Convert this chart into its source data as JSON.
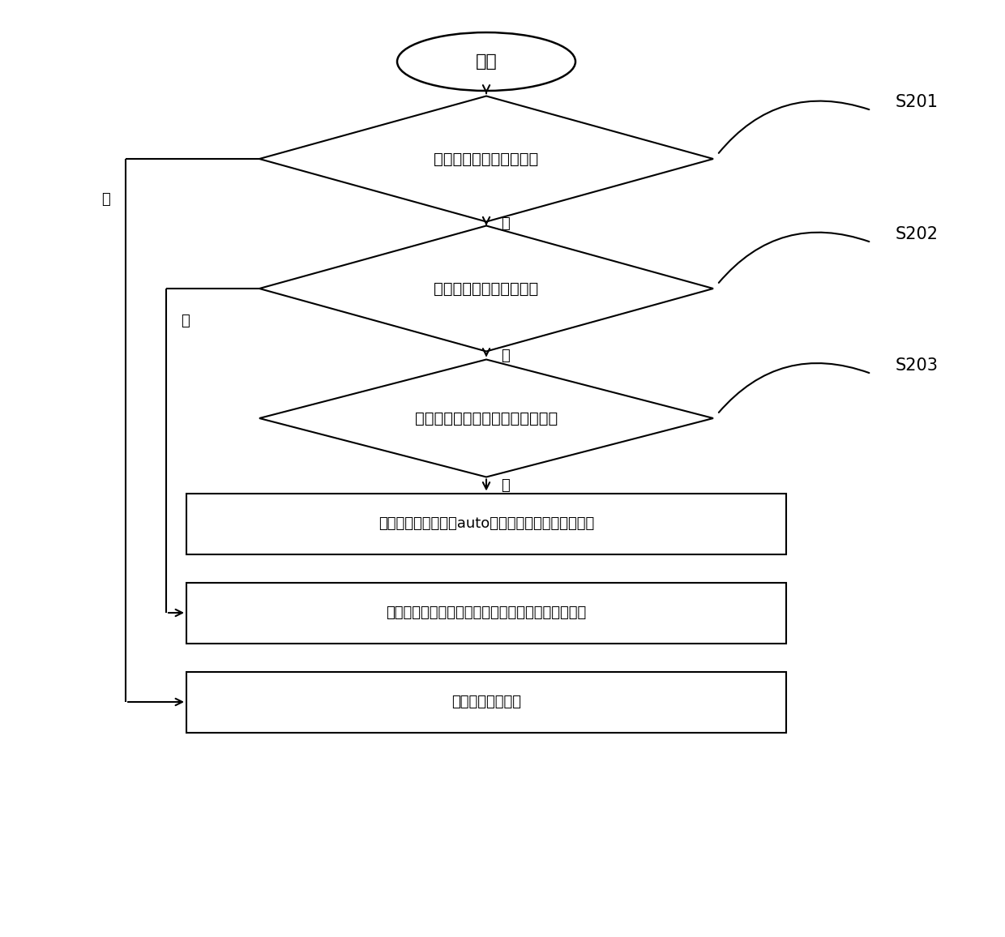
{
  "bg_color": "#ffffff",
  "line_color": "#000000",
  "text_color": "#000000",
  "font_size_start": 16,
  "font_size_diamond": 14,
  "font_size_box": 13,
  "font_size_step": 15,
  "font_size_label": 13,
  "start_label": "开始",
  "diamond1_label": "是否存在固定宽度值的列",
  "diamond2_label": "是否存在最小宽度值的列",
  "diamond3_label": "是否既没有宽度值也没有最小宽度",
  "box1_label": "将该列的属性定义为auto，并将其放入到所述数组中",
  "box2_label": "将该列放入到所述数组中，并记录该列的最小宽度值",
  "box3_label": "不对该列进行处理",
  "step1_label": "S201",
  "step2_label": "S202",
  "step3_label": "S203",
  "no_label": "否",
  "yes_label_d3": "是",
  "yes_label_d2": "是",
  "yes_label_d1": "是",
  "figsize": [
    12.4,
    11.56
  ],
  "dpi": 100
}
